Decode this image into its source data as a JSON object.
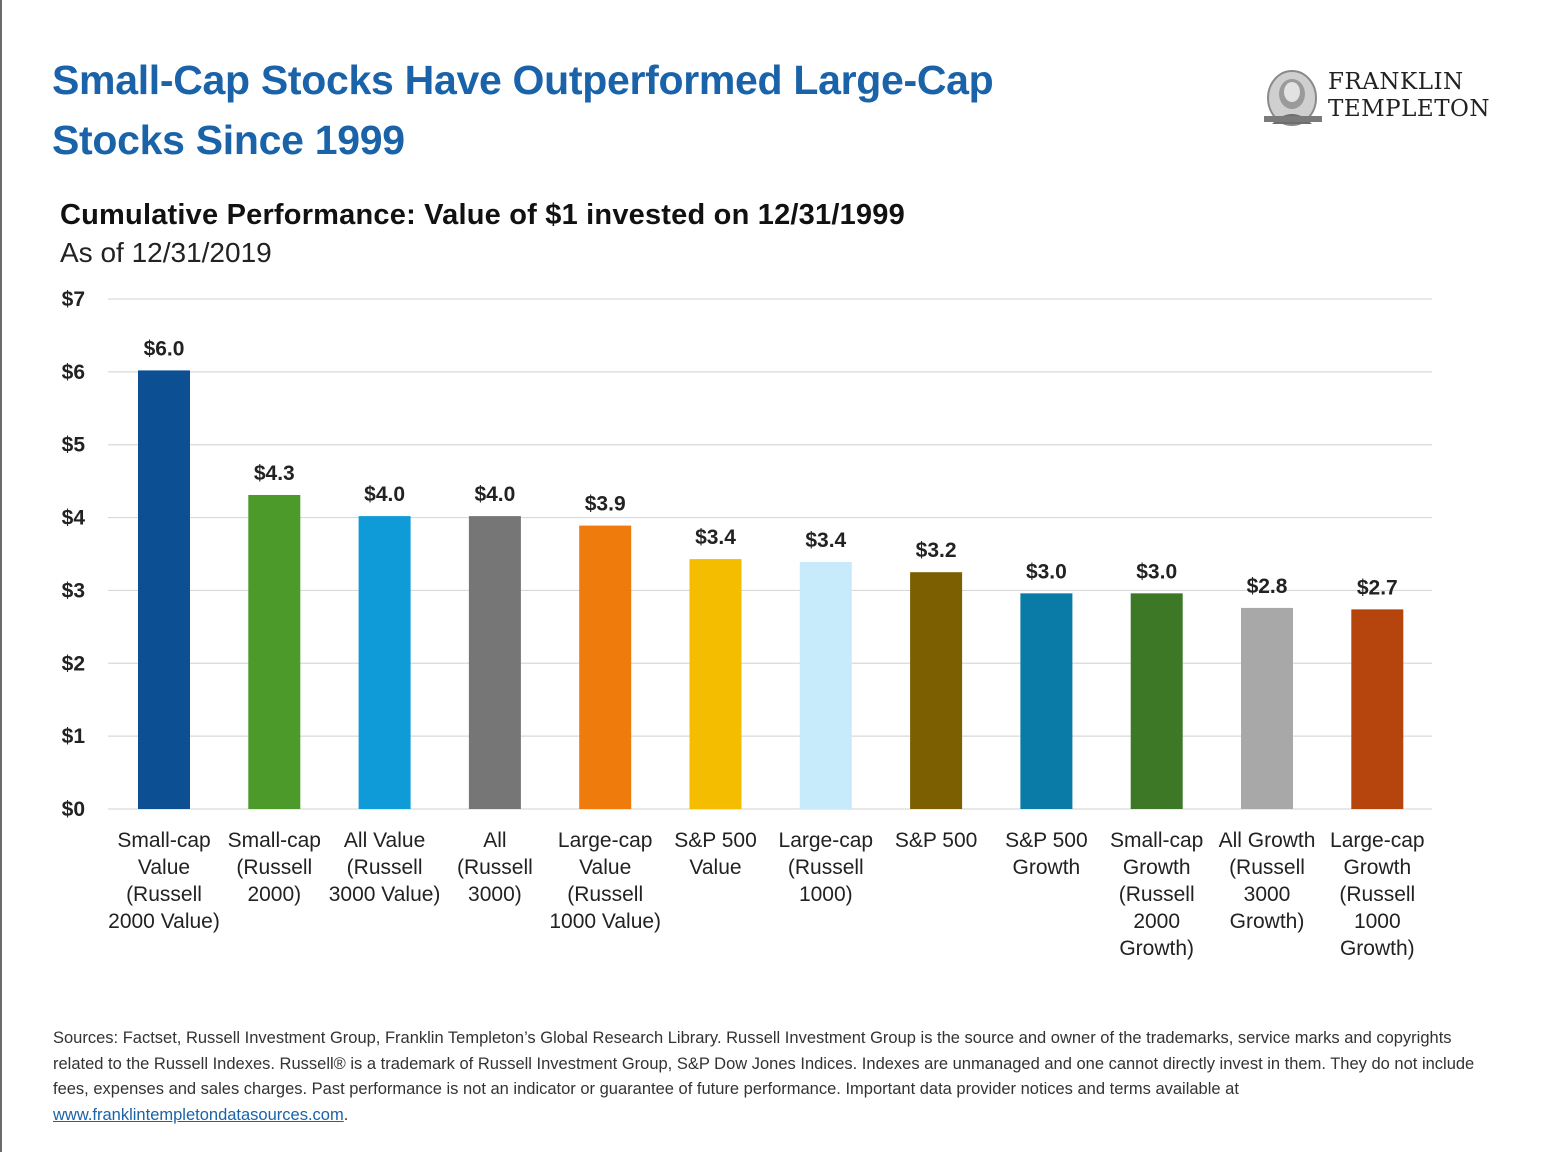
{
  "header": {
    "title_line1": "Small-Cap Stocks Have Outperformed Large-Cap",
    "title_line2": "Stocks Since 1999",
    "logo_line1": "FRANKLIN",
    "logo_line2": "TEMPLETON"
  },
  "chart_data": {
    "type": "bar",
    "title": "Cumulative Performance: Value of $1 invested on 12/31/1999",
    "subtitle": "As of 12/31/2019",
    "ylim": [
      0,
      7
    ],
    "ytick_values": [
      0,
      1,
      2,
      3,
      4,
      5,
      6,
      7
    ],
    "ytick_labels": [
      "$0",
      "$1",
      "$2",
      "$3",
      "$4",
      "$5",
      "$6",
      "$7"
    ],
    "grid": true,
    "categories": [
      [
        "Small-cap",
        "Value",
        "(Russell",
        "2000 Value)"
      ],
      [
        "Small-cap",
        "(Russell",
        "2000)"
      ],
      [
        "All Value",
        "(Russell",
        "3000 Value)"
      ],
      [
        "All",
        "(Russell",
        "3000)"
      ],
      [
        "Large-cap",
        "Value",
        "(Russell",
        "1000 Value)"
      ],
      [
        "S&P 500",
        "Value"
      ],
      [
        "Large-cap",
        "(Russell",
        "1000)"
      ],
      [
        "S&P 500"
      ],
      [
        "S&P 500",
        "Growth"
      ],
      [
        "Small-cap",
        "Growth",
        "(Russell",
        "2000",
        "Growth)"
      ],
      [
        "All Growth",
        "(Russell",
        "3000",
        "Growth)"
      ],
      [
        "Large-cap",
        "Growth",
        "(Russell",
        "1000",
        "Growth)"
      ]
    ],
    "values": [
      6.02,
      4.31,
      4.02,
      4.02,
      3.89,
      3.43,
      3.39,
      3.25,
      2.96,
      2.96,
      2.76,
      2.74
    ],
    "data_labels": [
      "$6.0",
      "$4.3",
      "$4.0",
      "$4.0",
      "$3.9",
      "$3.4",
      "$3.4",
      "$3.2",
      "$3.0",
      "$3.0",
      "$2.8",
      "$2.7"
    ],
    "colors": [
      "#0d4f93",
      "#4c9a2a",
      "#0f9bd7",
      "#767676",
      "#ee7b0b",
      "#f5bd00",
      "#c8ebfb",
      "#7b5f00",
      "#0a7aa6",
      "#3c7826",
      "#a8a8a8",
      "#b5440d"
    ]
  },
  "footer": {
    "sources_text": "Sources: Factset, Russell Investment Group, Franklin Templeton’s Global Research Library. Russell Investment Group is the source and owner of the trademarks, service marks and copyrights related to the Russell Indexes. Russell® is a trademark of Russell Investment Group, S&P Dow Jones Indices. Indexes are unmanaged and one cannot directly invest in them. They do not include fees, expenses and sales charges. Past performance is not an indicator or guarantee of future performance. Important data provider notices and terms available at",
    "link_text": "www.franklintempletondatasources.com",
    "link_suffix": "."
  },
  "colors": {
    "title": "#1a63a8",
    "grid": "#d9d9d9"
  }
}
